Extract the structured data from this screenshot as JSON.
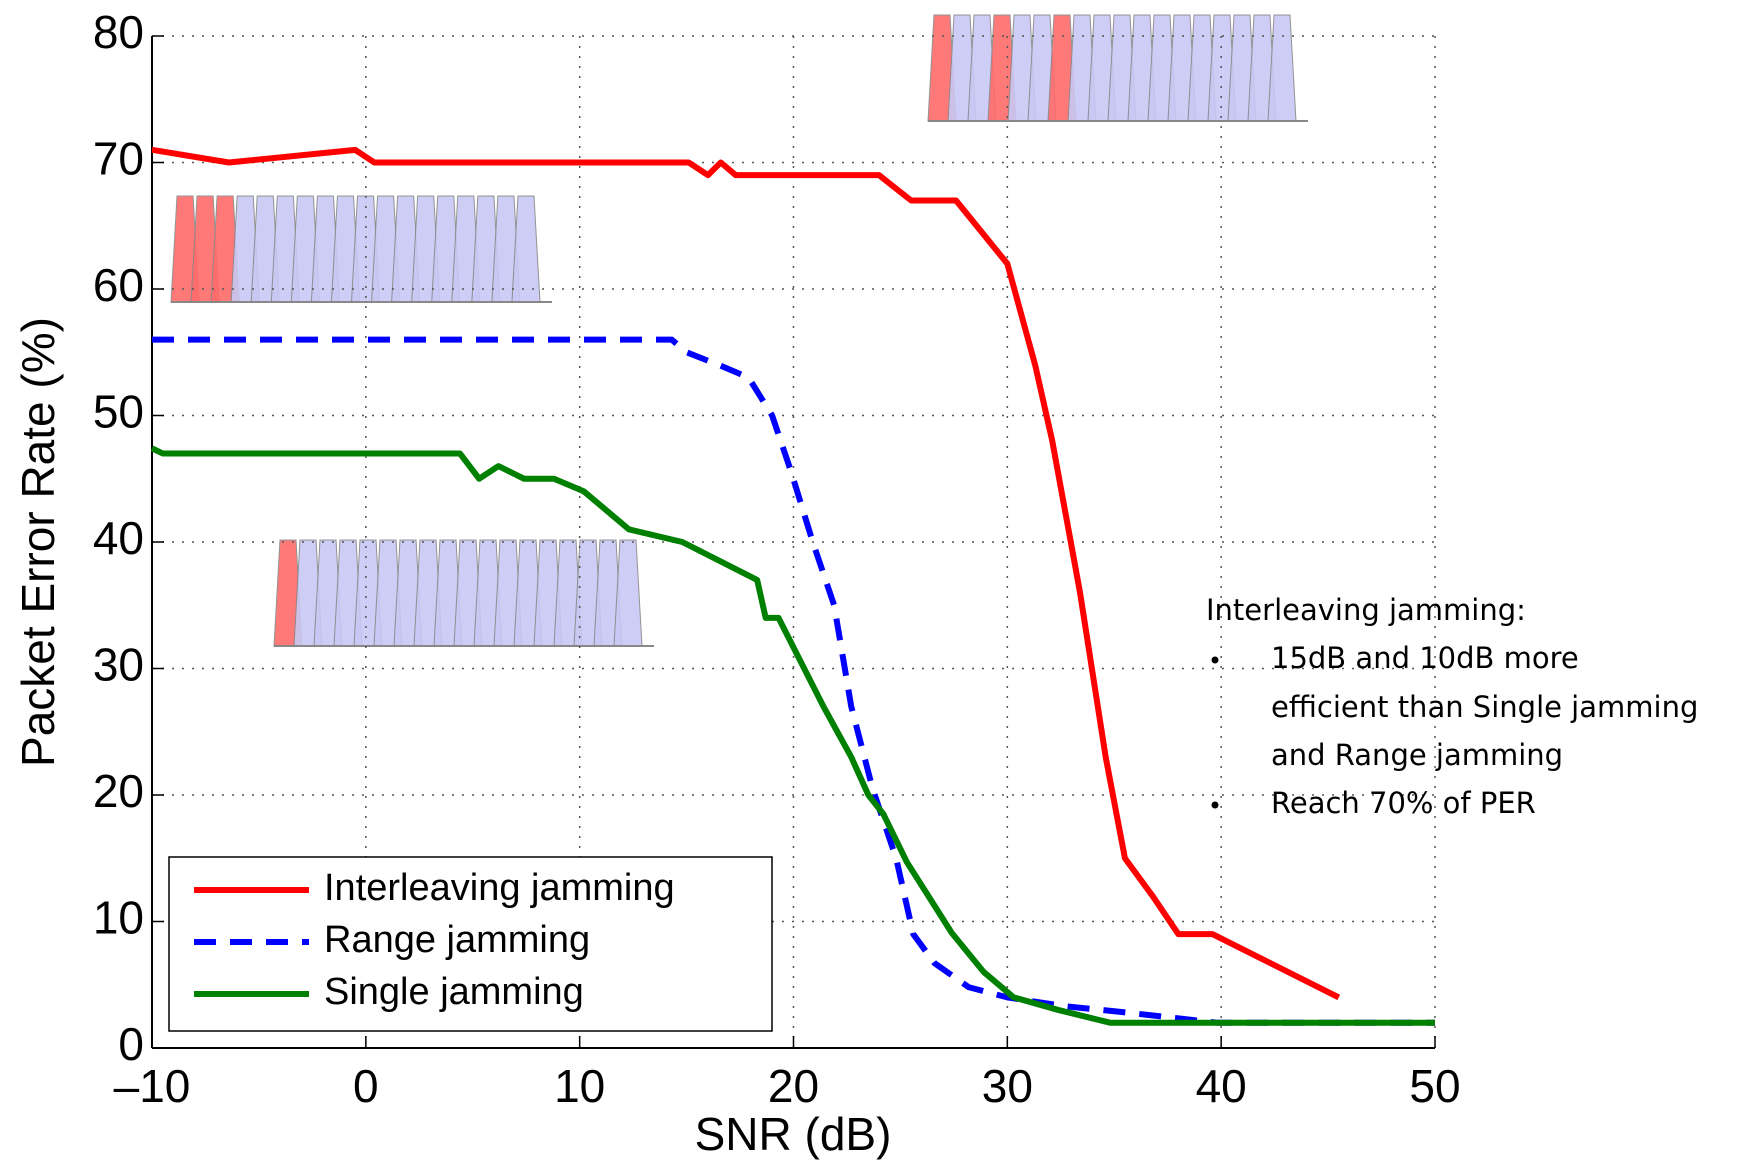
{
  "chart_data": {
    "type": "line",
    "xlabel": "SNR (dB)",
    "ylabel": "Packet Error Rate (%)",
    "xlim": [
      -10,
      50
    ],
    "ylim": [
      0,
      80
    ],
    "xticks": [
      {
        "value": -10,
        "label": "–10"
      },
      0,
      10,
      20,
      30,
      40,
      50
    ],
    "yticks": [
      0,
      10,
      20,
      30,
      40,
      50,
      60,
      70,
      80
    ],
    "grid": true,
    "legend": "lower left",
    "series": [
      {
        "name": "Interleaving jamming",
        "color": "#ff0000",
        "style": "solid",
        "x": [
          -10,
          -6.4,
          -0.5,
          0.4,
          15.1,
          16,
          16.6,
          17.3,
          24,
          25.5,
          27.6,
          30,
          31.3,
          32.1,
          33.4,
          34.6,
          35.5,
          36.8,
          38,
          39.6,
          45.5
        ],
        "values": [
          71,
          70,
          71,
          70,
          70,
          69,
          70,
          69,
          69,
          67,
          67,
          62,
          54,
          48,
          36,
          23,
          15,
          12,
          9,
          9,
          4
        ]
      },
      {
        "name": "Range jamming",
        "color": "#0000ff",
        "style": "dashed",
        "x": [
          -10,
          14.3,
          15,
          16.5,
          17.9,
          19,
          19.9,
          20.9,
          21.9,
          22.7,
          23.7,
          24.8,
          25.6,
          26.6,
          28.2,
          30,
          32.7,
          35.6,
          39.8,
          50
        ],
        "values": [
          56,
          56,
          55,
          54,
          53,
          50,
          45.5,
          40,
          35,
          27,
          20.5,
          15,
          9,
          6.7,
          4.8,
          4,
          3.3,
          2.8,
          2,
          2
        ]
      },
      {
        "name": "Single jamming",
        "color": "#008000",
        "style": "solid",
        "x": [
          -10,
          -9.5,
          4.4,
          5.3,
          6.2,
          7.4,
          8.8,
          10.2,
          12.3,
          14.8,
          18.3,
          18.7,
          19.3,
          20.2,
          21.4,
          22.7,
          23.5,
          24.2,
          25.3,
          27.4,
          28.9,
          30.3,
          32.4,
          34.8,
          50
        ],
        "values": [
          47.4,
          47,
          47,
          45,
          46,
          45,
          45,
          44,
          41,
          40,
          37,
          34,
          34,
          31,
          27,
          23,
          20,
          18.5,
          14.7,
          9.1,
          6,
          4,
          3,
          2,
          2
        ]
      }
    ],
    "annotation": {
      "title": "Interleaving jamming:",
      "bullets": [
        [
          "15dB and 10dB more",
          "efficient than Single jamming",
          "and Range jamming"
        ],
        [
          "Reach 70% of PER"
        ]
      ]
    }
  }
}
